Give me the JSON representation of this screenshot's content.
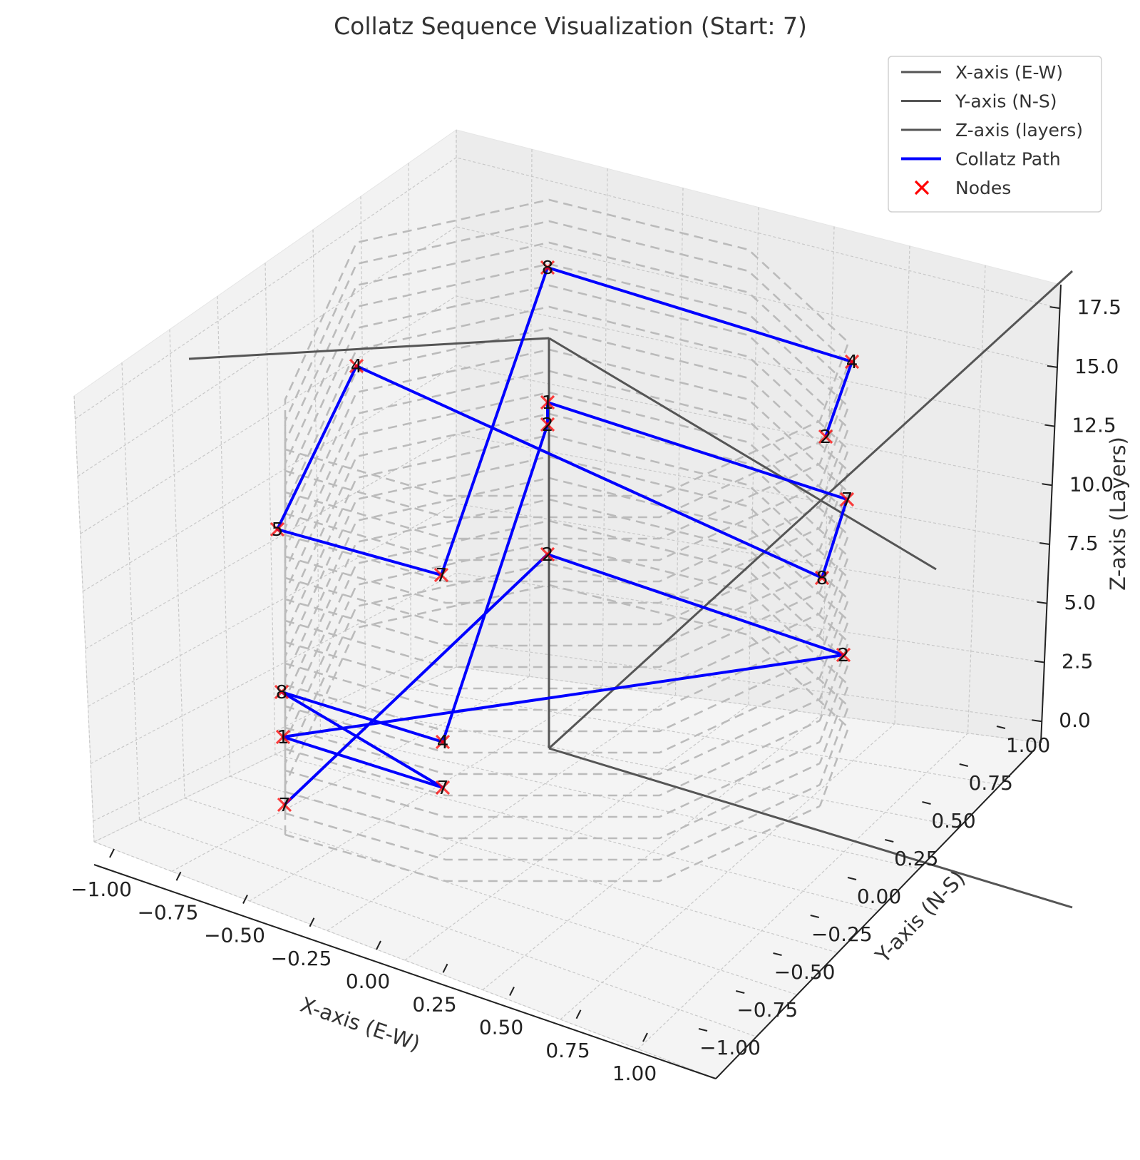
{
  "chart_data": {
    "type": "line",
    "projection": "3d",
    "title": "Collatz Sequence Visualization (Start: 7)",
    "xlabel": "X-axis (E-W)",
    "ylabel": "Y-axis (N-S)",
    "zlabel": "Z-axis (Layers)",
    "xlim": [
      -1.0,
      1.0
    ],
    "ylim": [
      -1.0,
      1.0
    ],
    "zlim": [
      -0.9,
      18.5
    ],
    "x_ticks": [
      "−1.00",
      "−0.75",
      "−0.50",
      "−0.25",
      "0.00",
      "0.25",
      "0.50",
      "0.75",
      "1.00"
    ],
    "y_ticks": [
      "−1.00",
      "−0.75",
      "−0.50",
      "−0.25",
      "0.00",
      "0.25",
      "0.50",
      "0.75",
      "1.00"
    ],
    "z_ticks": [
      "0.0",
      "2.5",
      "5.0",
      "7.5",
      "10.0",
      "12.5",
      "15.0",
      "17.5"
    ],
    "grid": true,
    "legend_position": "top-right",
    "legend": [
      {
        "label": "X-axis (E-W)",
        "kind": "line",
        "color": "#555555"
      },
      {
        "label": "Y-axis (N-S)",
        "kind": "line",
        "color": "#555555"
      },
      {
        "label": "Z-axis (layers)",
        "kind": "line",
        "color": "#555555"
      },
      {
        "label": "Collatz Path",
        "kind": "line",
        "color": "#0000ff"
      },
      {
        "label": "Nodes",
        "kind": "marker",
        "color": "#ff0000"
      }
    ],
    "reference_axes": [
      {
        "from": [
          -1,
          0,
          0
        ],
        "to": [
          1,
          0,
          0
        ]
      },
      {
        "from": [
          0,
          -1,
          0
        ],
        "to": [
          0,
          1,
          0
        ]
      },
      {
        "from": [
          0,
          0,
          0
        ],
        "to": [
          0,
          0,
          17
        ]
      }
    ],
    "node_labels": [
      "7",
      "2",
      "2",
      "1",
      "7",
      "8",
      "4",
      "2",
      "1",
      "7",
      "8",
      "4",
      "5",
      "7",
      "8",
      "4",
      "2",
      "1"
    ],
    "series": [
      {
        "name": "Collatz Path",
        "color": "#0000ff",
        "points": [
          [
            -0.95,
            0.05,
            0.0
          ],
          [
            0.0,
            0.0,
            6.2
          ],
          [
            0.95,
            -0.05,
            1.9
          ],
          [
            -0.95,
            0.05,
            3.0
          ],
          [
            -0.5,
            0.0,
            2.0
          ],
          [
            0.95,
            -0.05,
            8.2
          ],
          [
            0.95,
            -0.05,
            5.0
          ],
          [
            -0.3,
            -0.2,
            10.0
          ],
          [
            0.0,
            0.0,
            15.0
          ],
          [
            0.95,
            -0.05,
            15.8
          ],
          [
            0.95,
            -0.05,
            11.6
          ],
          [
            0.5,
            0.0,
            3.9
          ],
          [
            -0.95,
            0.05,
            10.0
          ],
          [
            -0.3,
            -0.2,
            1.0
          ],
          [
            0.0,
            0.0,
            13.0
          ],
          [
            0.0,
            0.0,
            14.0
          ]
        ]
      }
    ],
    "nodes": {
      "name": "Nodes",
      "color": "#ff0000",
      "points": [
        [
          -0.95,
          0.05,
          0.0
        ],
        [
          0.0,
          0.0,
          6.2
        ],
        [
          0.95,
          -0.05,
          1.9
        ],
        [
          -0.95,
          0.05,
          3.0
        ],
        [
          -0.5,
          0.0,
          2.0
        ],
        [
          0.95,
          -0.05,
          8.2
        ],
        [
          0.95,
          -0.05,
          5.0
        ],
        [
          -0.3,
          -0.2,
          10.0
        ],
        [
          0.0,
          0.0,
          15.0
        ],
        [
          0.95,
          -0.05,
          15.8
        ],
        [
          0.95,
          -0.05,
          11.6
        ],
        [
          0.5,
          0.0,
          3.9
        ],
        [
          -0.95,
          0.05,
          10.0
        ],
        [
          -0.3,
          -0.2,
          1.0
        ],
        [
          0.0,
          0.0,
          13.0
        ],
        [
          0.0,
          0.0,
          14.0
        ],
        [
          -0.3,
          -0.2,
          1.0
        ],
        [
          0.95,
          -0.05,
          11.6
        ]
      ]
    },
    "layer_rings": {
      "style": "dashed",
      "color": "#bbbbbb",
      "count": 19
    }
  }
}
